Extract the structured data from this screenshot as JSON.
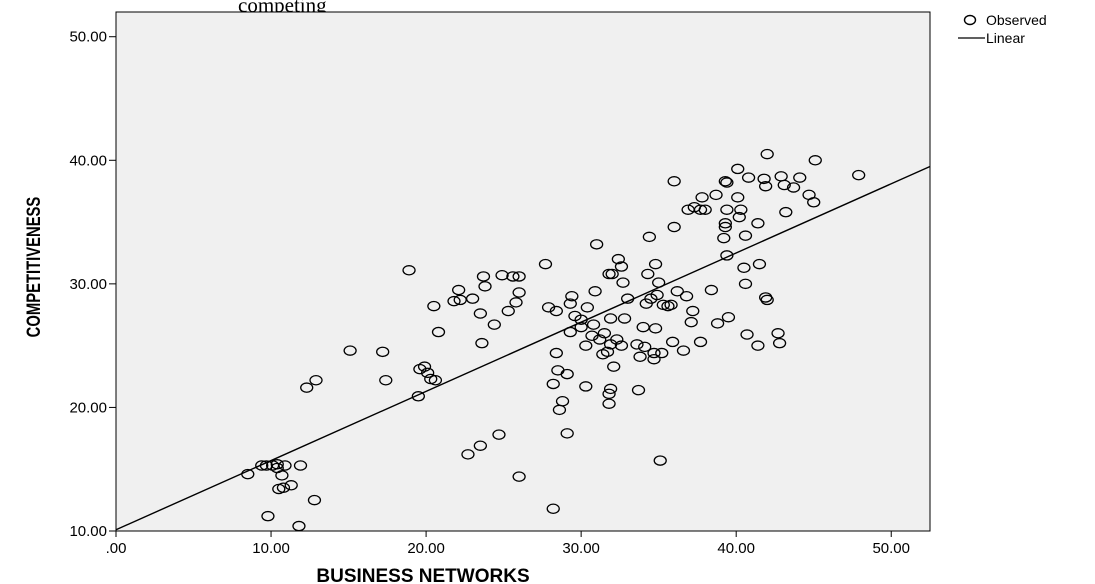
{
  "title_fragment": "competing",
  "chart_data": {
    "type": "scatter",
    "xlabel": "BUSINESS NETWORKS",
    "ylabel": "COMPETITIVENESS",
    "xlim": [
      0,
      52.5
    ],
    "ylim": [
      10,
      52
    ],
    "x_ticks": [
      ".00",
      "10.00",
      "20.00",
      "30.00",
      "40.00",
      "50.00"
    ],
    "y_ticks": [
      "10.00",
      "20.00",
      "30.00",
      "40.00",
      "50.00"
    ],
    "grid": false,
    "plot_background": "#f0f0f0",
    "legend": {
      "placement": "top-right outside",
      "entries": [
        "Observed",
        "Linear"
      ]
    },
    "series": [
      {
        "name": "Observed",
        "marker": "open-circle",
        "points": [
          [
            8.5,
            14.6
          ],
          [
            9.4,
            15.3
          ],
          [
            9.7,
            15.3
          ],
          [
            10.1,
            15.3
          ],
          [
            10.4,
            15.4
          ],
          [
            10.9,
            15.3
          ],
          [
            10.4,
            15.1
          ],
          [
            10.7,
            14.5
          ],
          [
            10.5,
            13.4
          ],
          [
            10.8,
            13.5
          ],
          [
            11.3,
            13.7
          ],
          [
            9.8,
            11.2
          ],
          [
            11.9,
            15.3
          ],
          [
            11.8,
            10.4
          ],
          [
            12.3,
            21.6
          ],
          [
            12.9,
            22.2
          ],
          [
            12.8,
            12.5
          ],
          [
            15.1,
            24.6
          ],
          [
            17.2,
            24.5
          ],
          [
            17.4,
            22.2
          ],
          [
            18.9,
            31.1
          ],
          [
            19.5,
            20.9
          ],
          [
            19.6,
            23.1
          ],
          [
            19.9,
            23.3
          ],
          [
            20.1,
            22.8
          ],
          [
            20.3,
            22.3
          ],
          [
            20.5,
            28.2
          ],
          [
            20.6,
            22.2
          ],
          [
            20.8,
            26.1
          ],
          [
            21.8,
            28.6
          ],
          [
            22.1,
            29.5
          ],
          [
            22.2,
            28.7
          ],
          [
            23.0,
            28.8
          ],
          [
            22.7,
            16.2
          ],
          [
            23.5,
            27.6
          ],
          [
            23.6,
            25.2
          ],
          [
            23.7,
            30.6
          ],
          [
            23.8,
            29.8
          ],
          [
            23.5,
            16.9
          ],
          [
            24.4,
            26.7
          ],
          [
            24.7,
            17.8
          ],
          [
            24.9,
            30.7
          ],
          [
            25.3,
            27.8
          ],
          [
            25.6,
            30.6
          ],
          [
            25.8,
            28.5
          ],
          [
            26.0,
            30.6
          ],
          [
            26.0,
            29.3
          ],
          [
            26.0,
            14.4
          ],
          [
            27.7,
            31.6
          ],
          [
            27.9,
            28.1
          ],
          [
            28.2,
            21.9
          ],
          [
            28.4,
            27.8
          ],
          [
            28.2,
            11.8
          ],
          [
            28.5,
            23.0
          ],
          [
            28.4,
            24.4
          ],
          [
            28.6,
            19.8
          ],
          [
            28.8,
            20.5
          ],
          [
            29.1,
            17.9
          ],
          [
            29.1,
            22.7
          ],
          [
            29.3,
            28.4
          ],
          [
            29.6,
            27.4
          ],
          [
            29.3,
            26.1
          ],
          [
            29.4,
            29.0
          ],
          [
            30.0,
            27.1
          ],
          [
            30.0,
            26.5
          ],
          [
            30.3,
            25.0
          ],
          [
            30.4,
            28.1
          ],
          [
            30.3,
            21.7
          ],
          [
            30.8,
            26.7
          ],
          [
            30.7,
            25.8
          ],
          [
            30.9,
            29.4
          ],
          [
            31.0,
            33.2
          ],
          [
            31.2,
            25.5
          ],
          [
            31.4,
            24.3
          ],
          [
            31.5,
            26.0
          ],
          [
            31.7,
            24.5
          ],
          [
            31.8,
            30.8
          ],
          [
            31.9,
            25.1
          ],
          [
            31.8,
            21.1
          ],
          [
            31.8,
            20.3
          ],
          [
            31.9,
            21.5
          ],
          [
            32.1,
            23.3
          ],
          [
            31.9,
            27.2
          ],
          [
            32.0,
            30.8
          ],
          [
            32.3,
            25.5
          ],
          [
            32.4,
            32.0
          ],
          [
            32.6,
            31.4
          ],
          [
            32.6,
            25.0
          ],
          [
            32.8,
            27.2
          ],
          [
            32.7,
            30.1
          ],
          [
            33.0,
            28.8
          ],
          [
            33.6,
            25.1
          ],
          [
            33.8,
            24.1
          ],
          [
            33.7,
            21.4
          ],
          [
            34.0,
            26.5
          ],
          [
            34.1,
            24.9
          ],
          [
            34.2,
            28.4
          ],
          [
            34.3,
            30.8
          ],
          [
            34.4,
            33.8
          ],
          [
            34.5,
            28.8
          ],
          [
            34.7,
            24.4
          ],
          [
            34.7,
            23.9
          ],
          [
            34.8,
            26.4
          ],
          [
            34.8,
            31.6
          ],
          [
            34.9,
            29.1
          ],
          [
            35.0,
            30.1
          ],
          [
            35.1,
            15.7
          ],
          [
            35.2,
            24.4
          ],
          [
            35.3,
            28.3
          ],
          [
            35.6,
            28.2
          ],
          [
            35.8,
            28.3
          ],
          [
            35.9,
            25.3
          ],
          [
            36.0,
            34.6
          ],
          [
            36.0,
            38.3
          ],
          [
            36.2,
            29.4
          ],
          [
            36.6,
            24.6
          ],
          [
            36.8,
            29.0
          ],
          [
            36.9,
            36.0
          ],
          [
            37.1,
            26.9
          ],
          [
            37.2,
            27.8
          ],
          [
            37.3,
            36.2
          ],
          [
            37.7,
            25.3
          ],
          [
            37.8,
            37.0
          ],
          [
            37.7,
            36.0
          ],
          [
            38.0,
            36.0
          ],
          [
            38.4,
            29.5
          ],
          [
            38.7,
            37.2
          ],
          [
            38.8,
            26.8
          ],
          [
            39.2,
            33.7
          ],
          [
            39.3,
            34.6
          ],
          [
            39.3,
            34.9
          ],
          [
            39.4,
            32.3
          ],
          [
            39.4,
            36.0
          ],
          [
            39.4,
            38.2
          ],
          [
            39.3,
            38.3
          ],
          [
            39.5,
            27.3
          ],
          [
            40.1,
            39.3
          ],
          [
            40.1,
            37.0
          ],
          [
            40.2,
            35.4
          ],
          [
            40.3,
            36.0
          ],
          [
            40.5,
            31.3
          ],
          [
            40.6,
            30.0
          ],
          [
            40.6,
            33.9
          ],
          [
            40.8,
            38.6
          ],
          [
            40.7,
            25.9
          ],
          [
            41.4,
            34.9
          ],
          [
            41.5,
            31.6
          ],
          [
            41.4,
            25.0
          ],
          [
            41.9,
            37.9
          ],
          [
            41.8,
            38.5
          ],
          [
            42.0,
            40.5
          ],
          [
            41.9,
            28.9
          ],
          [
            42.0,
            28.7
          ],
          [
            42.7,
            26.0
          ],
          [
            42.8,
            25.2
          ],
          [
            42.9,
            38.7
          ],
          [
            43.1,
            38.0
          ],
          [
            43.2,
            35.8
          ],
          [
            43.7,
            37.8
          ],
          [
            44.1,
            38.6
          ],
          [
            44.7,
            37.2
          ],
          [
            45.0,
            36.6
          ],
          [
            45.1,
            40.0
          ],
          [
            47.9,
            38.8
          ]
        ]
      },
      {
        "name": "Linear",
        "line": [
          [
            0,
            10.1
          ],
          [
            52.5,
            39.5
          ]
        ]
      }
    ]
  }
}
